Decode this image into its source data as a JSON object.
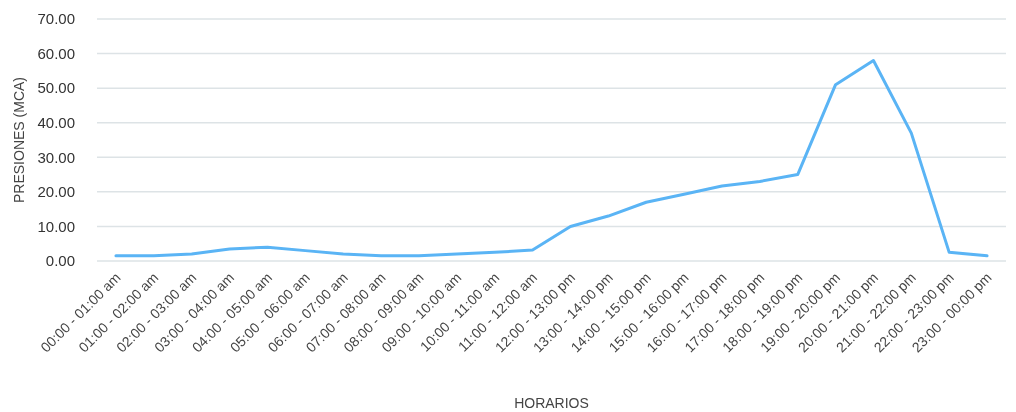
{
  "chart_data": {
    "type": "line",
    "xlabel": "HORARIOS",
    "ylabel": "PRESIONES (MCA)",
    "categories": [
      "00:00 - 01:00 am",
      "01:00 - 02:00 am",
      "02:00 - 03:00 am",
      "03:00 - 04:00 am",
      "04:00 - 05:00 am",
      "05:00 - 06:00 am",
      "06:00 - 07:00 am",
      "07:00 - 08:00 am",
      "08:00 - 09:00 am",
      "09:00 - 10:00 am",
      "10:00 - 11:00 am",
      "11:00 - 12:00 am",
      "12:00 - 13:00 pm",
      "13:00 - 14:00 pm",
      "14:00 - 15:00 pm",
      "15:00 - 16:00 pm",
      "16:00 - 17:00 pm",
      "17:00 - 18:00 pm",
      "18:00 - 19:00 pm",
      "19:00 - 20:00 pm",
      "20:00 - 21:00 pm",
      "21:00 - 22:00 pm",
      "22:00 - 23:00 pm",
      "23:00 - 00:00 pm"
    ],
    "series": [
      {
        "color": "#5ab4f5",
        "values": [
          1.5,
          1.5,
          2,
          3.5,
          4,
          3,
          2,
          1.5,
          1.5,
          2,
          2.5,
          3.2,
          10,
          13,
          17,
          19.3,
          21.7,
          23,
          25,
          51,
          58,
          37,
          2.5,
          1.5
        ]
      }
    ],
    "ylim": [
      0,
      70
    ],
    "yticks": [
      {
        "value": 0,
        "label": "0.00"
      },
      {
        "value": 10,
        "label": "10.00"
      },
      {
        "value": 20,
        "label": "20.00"
      },
      {
        "value": 30,
        "label": "30.00"
      },
      {
        "value": 40,
        "label": "40.00"
      },
      {
        "value": 50,
        "label": "50.00"
      },
      {
        "value": 60,
        "label": "60.00"
      },
      {
        "value": 70,
        "label": "70.00"
      }
    ],
    "grid": "y",
    "marker": "none",
    "line_style": "solid"
  }
}
